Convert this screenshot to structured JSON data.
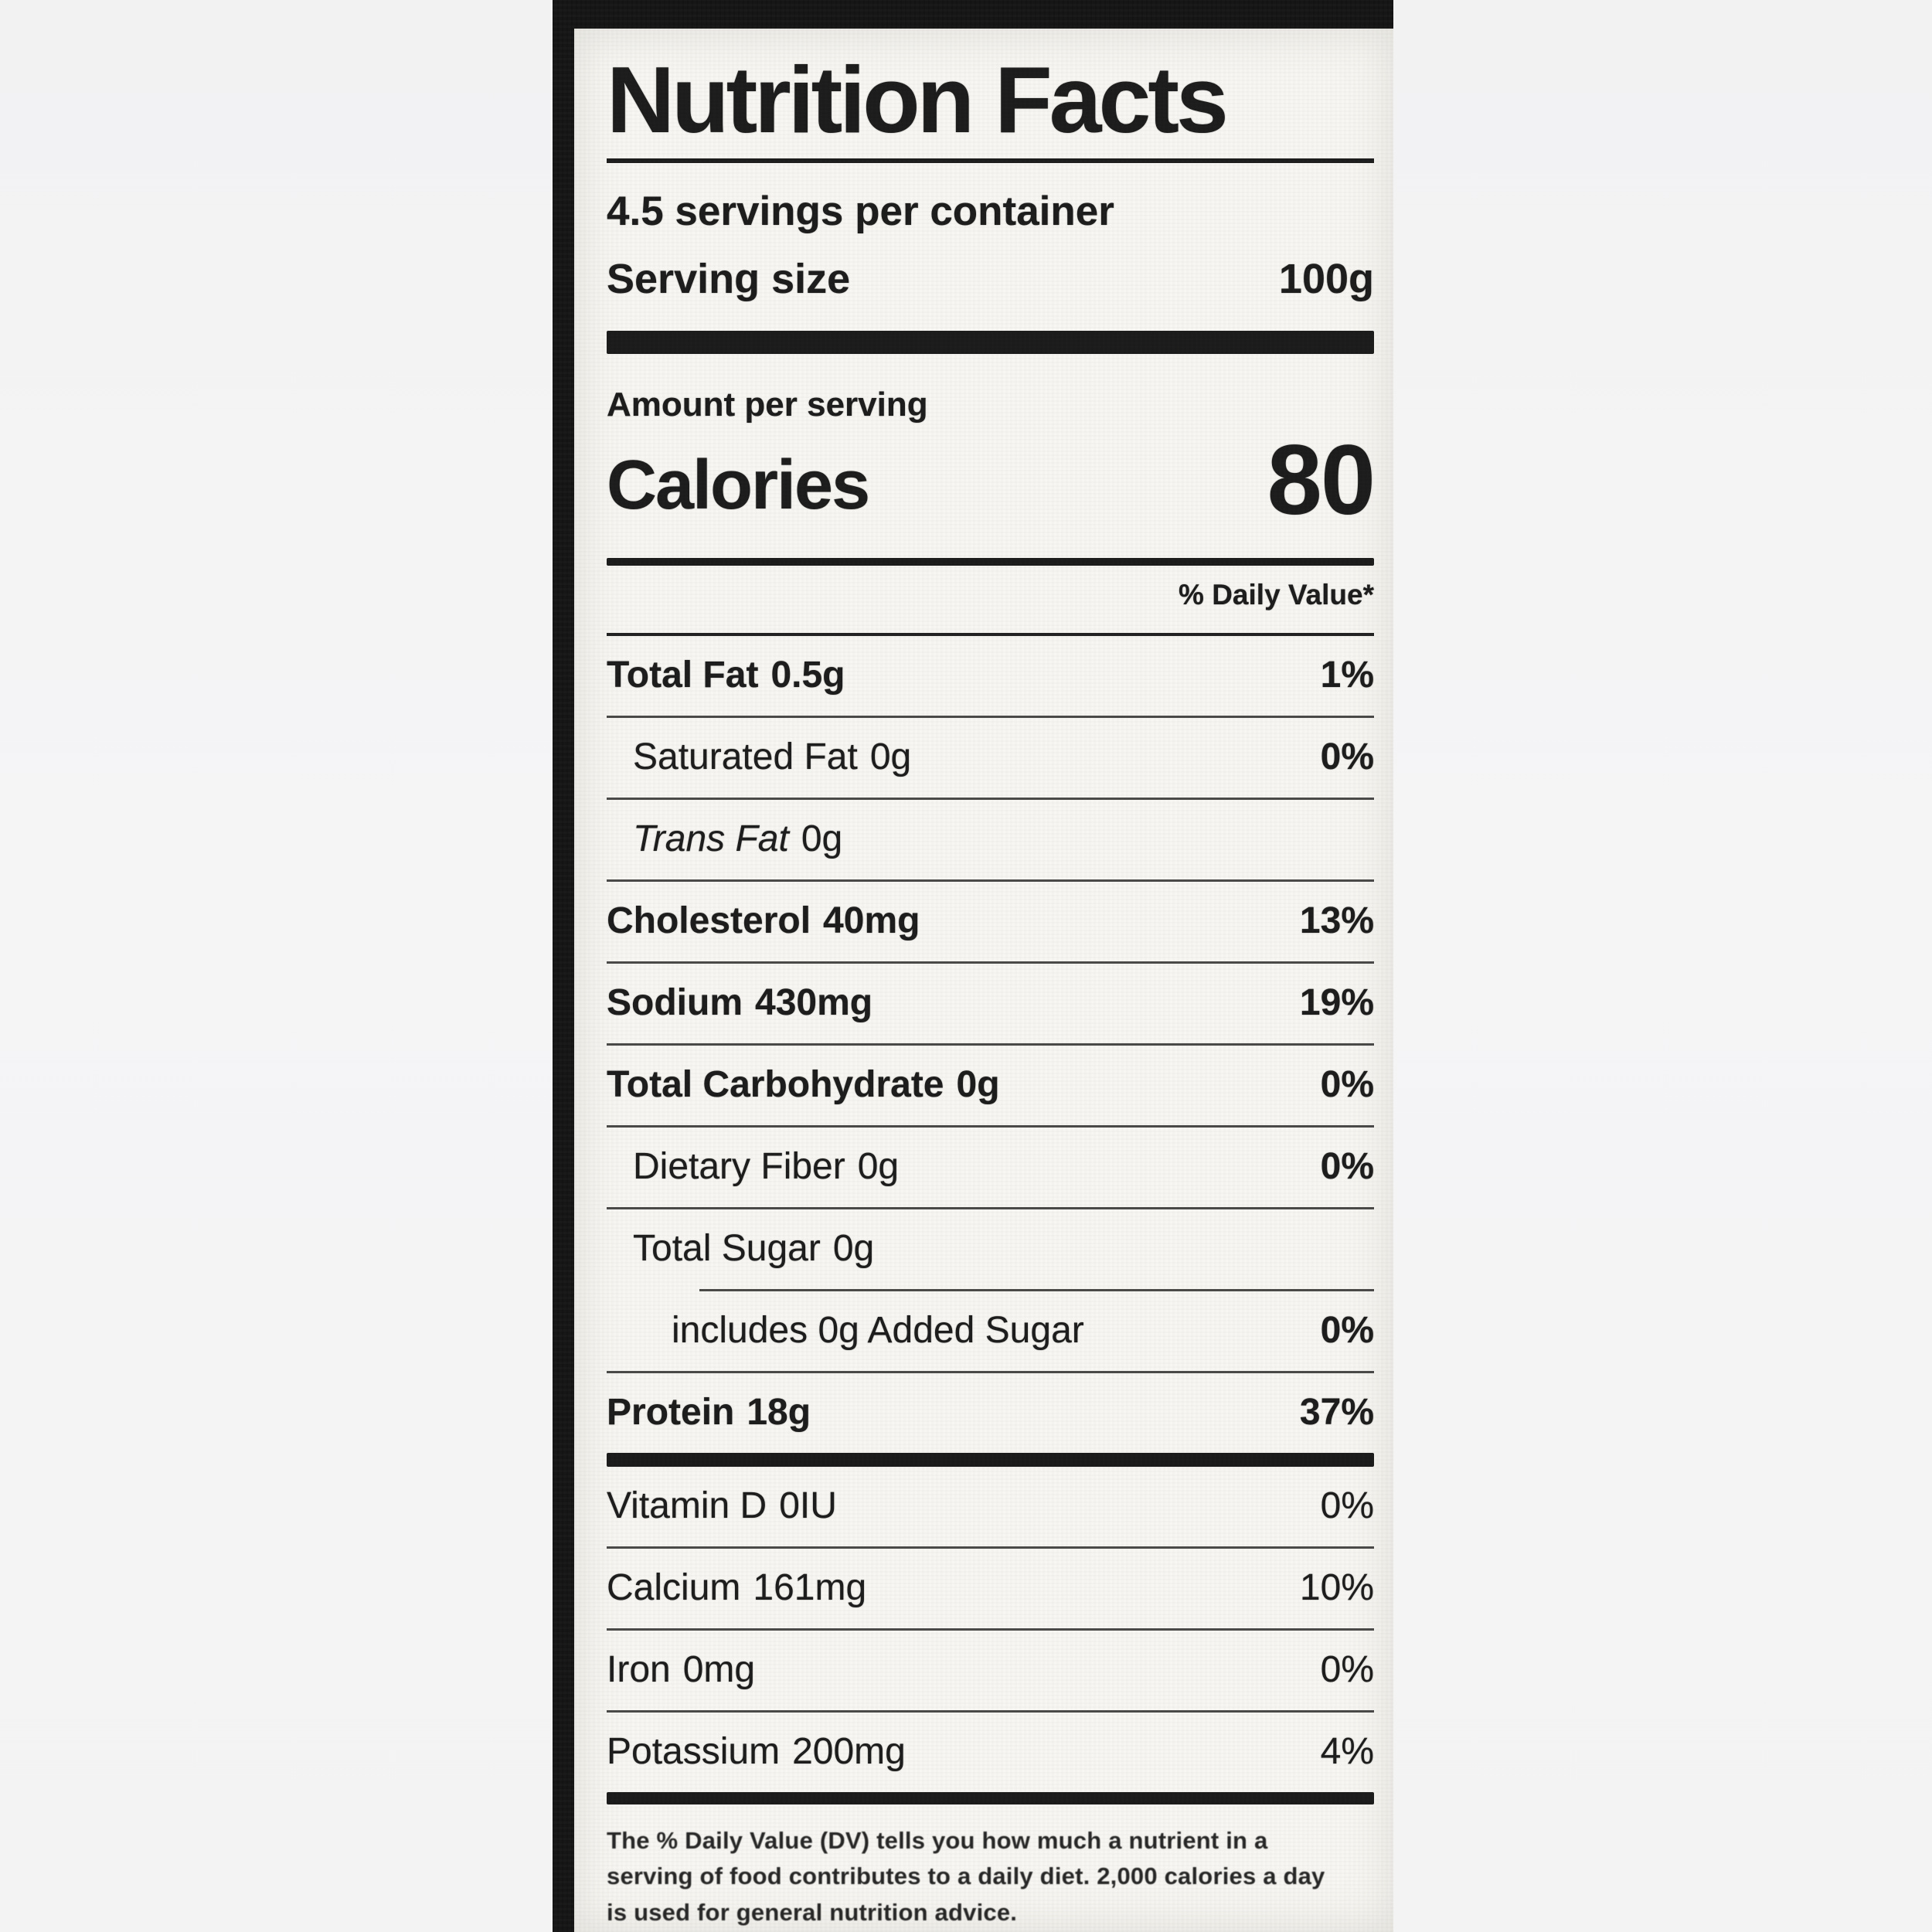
{
  "colors": {
    "page_background": "#f3f3f4",
    "photo_background": "#161616",
    "label_background": "#f7f6f2",
    "ink": "#1c1c1c"
  },
  "label": {
    "title": "Nutrition Facts",
    "servings_per_container": "4.5 servings per container",
    "serving_size_label": "Serving size",
    "serving_size_value": "100g",
    "amount_per_serving": "Amount per serving",
    "calories_label": "Calories",
    "calories_value": "80",
    "daily_value_header": "% Daily Value*",
    "rows": [
      {
        "name": "Total Fat",
        "amount": "0.5g",
        "dv": "1%"
      },
      {
        "name": "Saturated Fat",
        "amount": "0g",
        "dv": "0%"
      },
      {
        "name": "Trans Fat",
        "amount": "0g",
        "dv": ""
      },
      {
        "name": "Cholesterol",
        "amount": "40mg",
        "dv": "13%"
      },
      {
        "name": "Sodium",
        "amount": "430mg",
        "dv": "19%"
      },
      {
        "name": "Total Carbohydrate",
        "amount": "0g",
        "dv": "0%"
      },
      {
        "name": "Dietary Fiber",
        "amount": "0g",
        "dv": "0%"
      },
      {
        "name": "Total Sugar",
        "amount": "0g",
        "dv": ""
      },
      {
        "name": "includes 0g Added Sugar",
        "amount": "",
        "dv": "0%"
      },
      {
        "name": "Protein",
        "amount": "18g",
        "dv": "37%"
      },
      {
        "name": "Vitamin D",
        "amount": "0IU",
        "dv": "0%"
      },
      {
        "name": "Calcium",
        "amount": "161mg",
        "dv": "10%"
      },
      {
        "name": "Iron",
        "amount": "0mg",
        "dv": "0%"
      },
      {
        "name": "Potassium",
        "amount": "200mg",
        "dv": "4%"
      }
    ],
    "footnote": "The % Daily Value (DV) tells you how much a nutrient in a\nserving of food contributes to a daily diet. 2,000 calories a day\nis used for general nutrition advice."
  }
}
